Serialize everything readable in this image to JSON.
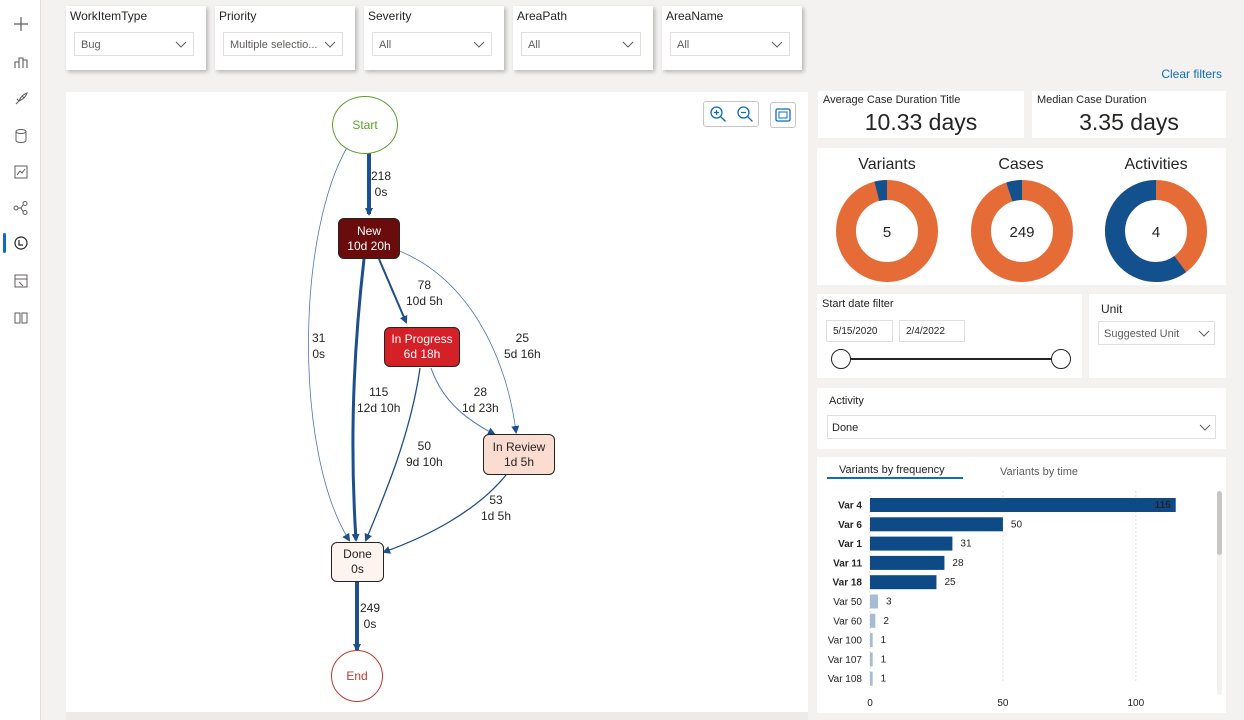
{
  "rail": {
    "icons": [
      "add-icon",
      "dashboard-icon",
      "rocket-icon",
      "database-icon",
      "chart-icon",
      "flow-icon",
      "process-mining-icon",
      "report-icon",
      "book-icon"
    ],
    "active_index": 6
  },
  "filters": [
    {
      "label": "WorkItemType",
      "value": "Bug"
    },
    {
      "label": "Priority",
      "value": "Multiple selectio..."
    },
    {
      "label": "Severity",
      "value": "All"
    },
    {
      "label": "AreaPath",
      "value": "All"
    },
    {
      "label": "AreaName",
      "value": "All"
    }
  ],
  "clear_filters": "Clear filters",
  "graph": {
    "nodes": {
      "start": {
        "label": "Start"
      },
      "new": {
        "name": "New",
        "duration": "10d 20h",
        "color": "#6b0c0c"
      },
      "in_progress": {
        "name": "In Progress",
        "duration": "6d 18h",
        "color": "#d42027"
      },
      "in_review": {
        "name": "In Review",
        "duration": "1d 5h",
        "color": "#fbdcd0"
      },
      "done": {
        "name": "Done",
        "duration": "0s",
        "color": "#fdf3ef"
      },
      "end": {
        "label": "End"
      }
    },
    "edges": {
      "start_new": {
        "count": "218",
        "time": "0s"
      },
      "new_progress": {
        "count": "78",
        "time": "10d 5h"
      },
      "new_review": {
        "count": "25",
        "time": "5d 16h"
      },
      "start_done": {
        "count": "31",
        "time": "0s"
      },
      "new_done": {
        "count": "115",
        "time": "12d 10h"
      },
      "progress_review": {
        "count": "28",
        "time": "1d 23h"
      },
      "progress_done": {
        "count": "50",
        "time": "9d 10h"
      },
      "review_done": {
        "count": "53",
        "time": "1d 5h"
      },
      "done_end": {
        "count": "249",
        "time": "0s"
      }
    }
  },
  "kpis": {
    "avg": {
      "title": "Average Case Duration Title",
      "value": "10.33 days"
    },
    "median": {
      "title": "Median Case Duration",
      "value": "3.35 days"
    }
  },
  "donuts": [
    {
      "title": "Variants",
      "value": "5",
      "fraction": 0.04
    },
    {
      "title": "Cases",
      "value": "249",
      "fraction": 0.05
    },
    {
      "title": "Activities",
      "value": "4",
      "fraction": 0.6
    }
  ],
  "date_filter": {
    "title": "Start date filter",
    "start": "5/15/2020",
    "end": "2/4/2022"
  },
  "unit": {
    "title": "Unit",
    "value": "Suggested Unit"
  },
  "activity": {
    "title": "Activity",
    "value": "Done"
  },
  "variants": {
    "tabs": [
      "Variants by frequency",
      "Variants by time"
    ],
    "colors": {
      "primary": "#0e4a86",
      "secondary": "#a6bcd4"
    }
  },
  "chart_data": {
    "type": "bar",
    "orientation": "horizontal",
    "categories": [
      "Var 4",
      "Var 6",
      "Var 1",
      "Var 11",
      "Var 18",
      "Var 50",
      "Var 60",
      "Var 100",
      "Var 107",
      "Var 108"
    ],
    "values": [
      115,
      50,
      31,
      28,
      25,
      3,
      2,
      1,
      1,
      1
    ],
    "highlighted": [
      true,
      true,
      true,
      true,
      true,
      false,
      false,
      false,
      false,
      false
    ],
    "xticks": [
      "0",
      "50",
      "100"
    ],
    "xlim": [
      0,
      120
    ],
    "grid": true
  }
}
